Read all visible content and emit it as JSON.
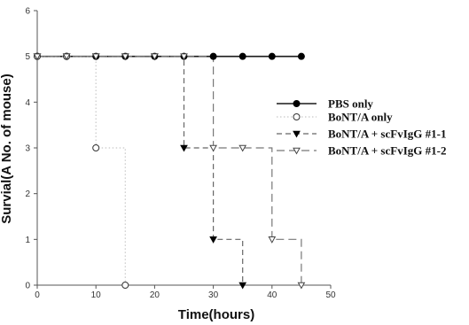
{
  "chart_data": {
    "type": "line",
    "title": "",
    "xlabel": "Time(hours)",
    "ylabel": "Survial(A No. of mouse)",
    "xlim": [
      0,
      50
    ],
    "ylim": [
      0,
      6
    ],
    "xticks": [
      0,
      10,
      20,
      30,
      40,
      50
    ],
    "yticks": [
      0,
      1,
      2,
      3,
      4,
      5,
      6
    ],
    "grid": false,
    "legend_position": "right",
    "step": true,
    "series": [
      {
        "name": "PBS only",
        "color": "#1a1a1a",
        "marker": "filled-circle",
        "line_style": "solid",
        "x": [
          0,
          5,
          10,
          15,
          20,
          25,
          30,
          35,
          40,
          45
        ],
        "y": [
          5,
          5,
          5,
          5,
          5,
          5,
          5,
          5,
          5,
          5
        ]
      },
      {
        "name": "BoNT/A only",
        "color": "#c8c8c8",
        "marker": "open-circle",
        "line_style": "dotted",
        "x": [
          0,
          5,
          10,
          15
        ],
        "y": [
          5,
          5,
          3,
          0
        ]
      },
      {
        "name": "BoNT/A + scFvIgG #1-1",
        "color": "#666666",
        "marker": "filled-triangle-down",
        "line_style": "dashed",
        "x": [
          0,
          5,
          10,
          15,
          20,
          25,
          30,
          35
        ],
        "y": [
          5,
          5,
          5,
          5,
          5,
          3,
          1,
          0
        ]
      },
      {
        "name": "BoNT/A + scFvIgG #1-2",
        "color": "#777777",
        "marker": "open-triangle-down",
        "line_style": "long-dashed",
        "x": [
          0,
          5,
          10,
          15,
          20,
          25,
          30,
          35,
          40,
          45
        ],
        "y": [
          5,
          5,
          5,
          5,
          5,
          5,
          3,
          3,
          1,
          0
        ]
      }
    ]
  }
}
